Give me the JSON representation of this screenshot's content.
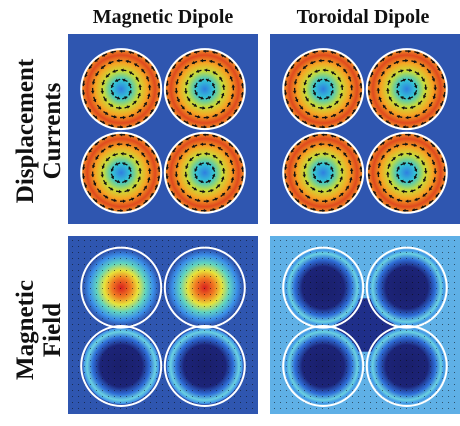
{
  "columns": {
    "left": "Magnetic Dipole",
    "right": "Toroidal Dipole"
  },
  "rows": {
    "top_line1": "Displacement",
    "top_line2": "Currents",
    "bottom_line1": "Magnetic",
    "bottom_line2": "Field"
  },
  "panels": [
    {
      "name": "magnetic-dipole-displacement-currents",
      "field": "current",
      "circulation": [
        "ccw",
        "ccw",
        "ccw",
        "ccw"
      ]
    },
    {
      "name": "toroidal-dipole-displacement-currents",
      "field": "current",
      "circulation": [
        "ccw",
        "cw",
        "ccw",
        "cw"
      ]
    },
    {
      "name": "magnetic-dipole-magnetic-field",
      "field": "magnetic",
      "pattern": "two-hot-two-cold"
    },
    {
      "name": "toroidal-dipole-magnetic-field",
      "field": "magnetic",
      "pattern": "four-cold"
    }
  ],
  "colors": {
    "background_blue": "#2f56b0",
    "hot": "#d81f1f",
    "warm": "#f5a623",
    "cold": "#1a1f6b",
    "ring": "#ffffff",
    "arrow": "#111111"
  }
}
